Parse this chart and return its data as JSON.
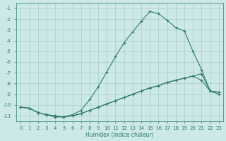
{
  "bg_color": "#cde8e8",
  "line_color": "#2e7d6e",
  "grid_color": "#a8cccc",
  "xlabel": "Humidex (Indice chaleur)",
  "xlim": [
    -0.5,
    23.5
  ],
  "ylim": [
    -11.5,
    -0.5
  ],
  "main_x": [
    0,
    1,
    2,
    3,
    4,
    5,
    6,
    7,
    8,
    9,
    10,
    11,
    12,
    13,
    14,
    15,
    16,
    17,
    18,
    19,
    20,
    21,
    22,
    23
  ],
  "main_y": [
    -10.2,
    -10.3,
    -10.7,
    -10.9,
    -11.0,
    -11.1,
    -10.9,
    -10.5,
    -9.5,
    -8.3,
    -6.9,
    -5.5,
    -4.2,
    -3.2,
    -2.2,
    -1.3,
    -1.5,
    -2.1,
    -2.8,
    -3.1,
    -5.0,
    -6.7,
    -8.7,
    -8.8
  ],
  "line2_x": [
    0,
    1,
    2,
    3,
    4,
    5,
    6,
    7,
    8,
    9,
    10,
    11,
    12,
    13,
    14,
    15,
    16,
    17,
    18,
    19,
    20,
    21,
    22,
    23
  ],
  "line2_y": [
    -10.2,
    -10.3,
    -10.7,
    -10.9,
    -11.1,
    -11.1,
    -11.0,
    -10.8,
    -10.5,
    -10.2,
    -9.9,
    -9.6,
    -9.3,
    -9.0,
    -8.7,
    -8.4,
    -8.2,
    -7.9,
    -7.7,
    -7.5,
    -7.3,
    -7.1,
    -8.7,
    -8.8
  ],
  "line3_x": [
    0,
    1,
    2,
    3,
    4,
    5,
    6,
    7,
    8,
    9,
    10,
    11,
    12,
    13,
    14,
    15,
    16,
    17,
    18,
    19,
    20,
    21,
    22,
    23
  ],
  "line3_y": [
    -10.2,
    -10.3,
    -10.7,
    -10.9,
    -11.1,
    -11.1,
    -11.0,
    -10.8,
    -10.5,
    -10.2,
    -9.9,
    -9.6,
    -9.3,
    -9.0,
    -8.7,
    -8.4,
    -8.2,
    -7.9,
    -7.7,
    -7.5,
    -7.3,
    -7.7,
    -8.7,
    -9.0
  ]
}
